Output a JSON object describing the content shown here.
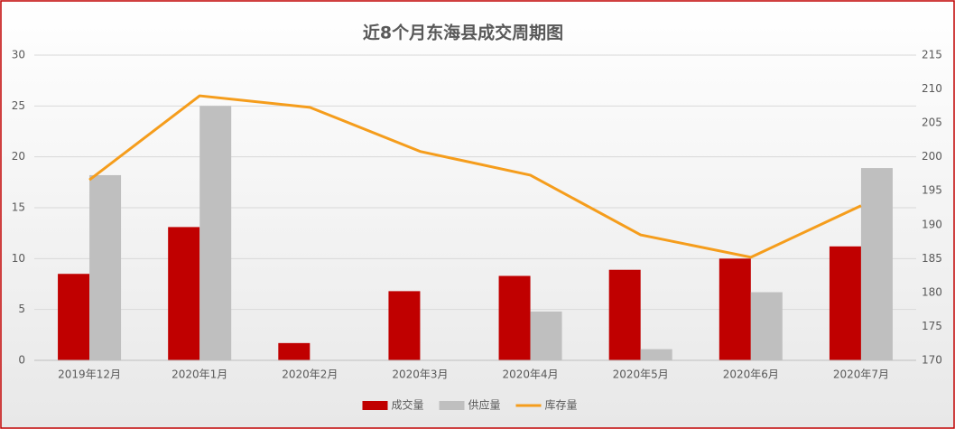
{
  "chart_data": {
    "type": "bar-line",
    "title": "近8个月东海县成交周期图",
    "categories": [
      "2019年12月",
      "2020年1月",
      "2020年2月",
      "2020年3月",
      "2020年4月",
      "2020年5月",
      "2020年6月",
      "2020年7月"
    ],
    "series": [
      {
        "name": "成交量",
        "type": "bar",
        "color": "#c00000",
        "values": [
          8.5,
          13.1,
          1.7,
          6.8,
          8.3,
          8.9,
          10.0,
          11.2
        ]
      },
      {
        "name": "供应量",
        "type": "bar",
        "color": "#bfbfbf",
        "values": [
          18.2,
          25.0,
          null,
          null,
          4.8,
          1.1,
          6.7,
          18.9
        ]
      },
      {
        "name": "库存量",
        "type": "line",
        "axis": "y2",
        "color": "#f59d1c",
        "values": [
          196.6,
          209.0,
          207.3,
          200.8,
          197.3,
          188.5,
          185.2,
          192.8
        ]
      }
    ],
    "ylim": [
      0,
      30
    ],
    "yticks": [
      0,
      5,
      10,
      15,
      20,
      25,
      30
    ],
    "y2lim": [
      170,
      215
    ],
    "y2ticks": [
      170,
      175,
      180,
      185,
      190,
      195,
      200,
      205,
      210,
      215
    ],
    "grid": true,
    "legend": "bottom"
  }
}
